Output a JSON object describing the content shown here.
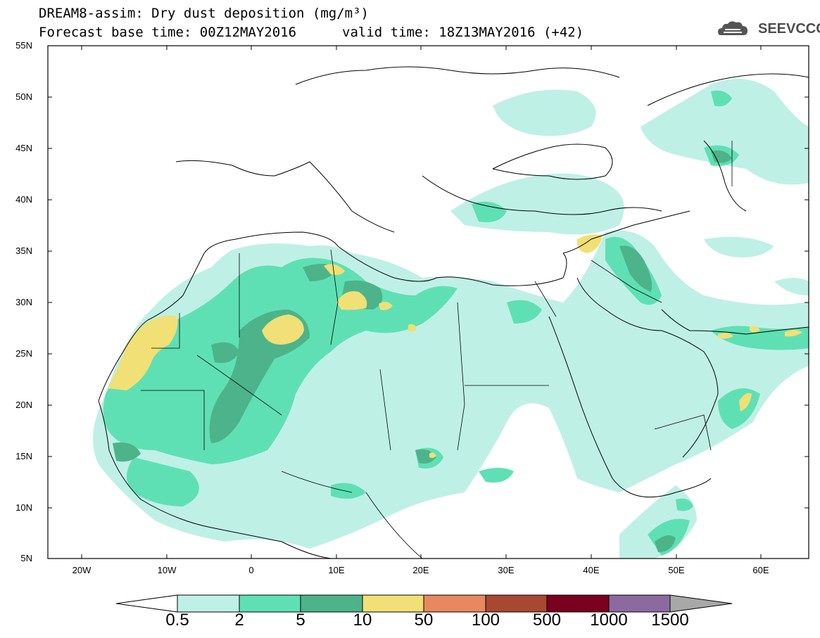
{
  "title": {
    "line1": "DREAM8-assim: Dry dust deposition (mg/m³)",
    "line2": "Forecast base time: 00Z12MAY2016",
    "valid": "valid time: 18Z13MAY2016 (+42)"
  },
  "logo": {
    "text": "SEEVCCC",
    "icon": "cloud-logo-icon"
  },
  "map": {
    "lat_labels": [
      "55N",
      "50N",
      "45N",
      "40N",
      "35N",
      "30N",
      "25N",
      "20N",
      "15N",
      "10N",
      "5N"
    ],
    "lon_labels": [
      "20W",
      "10W",
      "0",
      "10E",
      "20E",
      "30E",
      "40E",
      "50E",
      "60E"
    ],
    "lat_range": [
      5,
      55
    ],
    "lon_range": [
      -25,
      65
    ]
  },
  "colorbar": {
    "labels": [
      "0.5",
      "2",
      "5",
      "10",
      "50",
      "100",
      "500",
      "1000",
      "1500"
    ],
    "colors": [
      "#bff0e6",
      "#5fe0b4",
      "#4db38b",
      "#f0e075",
      "#e88860",
      "#a84832",
      "#7a0020",
      "#8c6aa0",
      "#a8a8a8"
    ],
    "under_color": "#ffffff"
  },
  "colors": {
    "level1": "#bff0e6",
    "level2": "#5fe0b4",
    "level3": "#4db38b",
    "level4": "#f0e075",
    "border": "#000000"
  }
}
